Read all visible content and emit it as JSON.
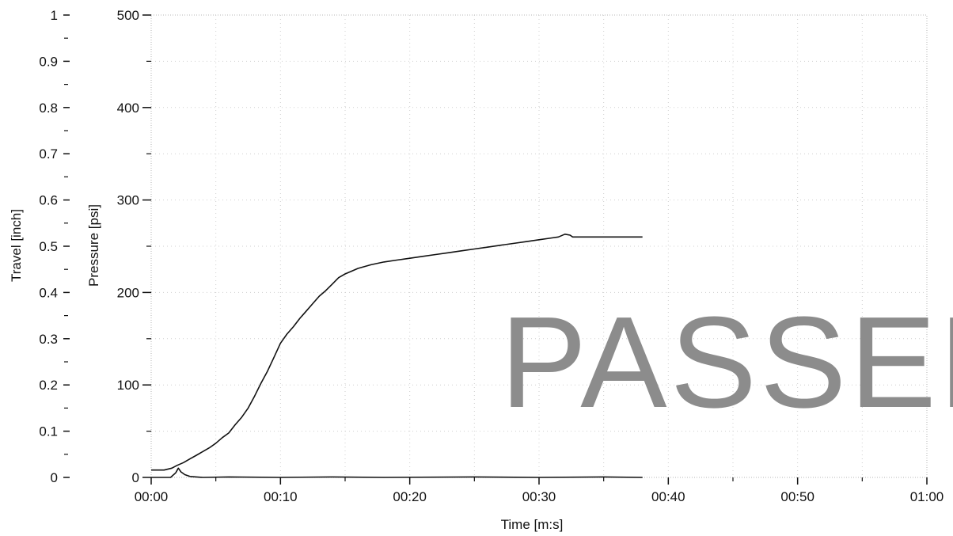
{
  "chart_data": {
    "type": "line",
    "xlabel": "Time [m:s]",
    "ylabel_left": "Travel [inch]",
    "ylabel_right": "Pressure [psi]",
    "x_range_seconds": [
      0,
      60
    ],
    "x_ticks": [
      "00:00",
      "00:10",
      "00:20",
      "00:30",
      "00:40",
      "00:50",
      "01:00"
    ],
    "travel_range": [
      0,
      1
    ],
    "travel_ticks": [
      "0",
      "0.1",
      "0.2",
      "0.3",
      "0.4",
      "0.5",
      "0.6",
      "0.7",
      "0.8",
      "0.9",
      "1"
    ],
    "pressure_range": [
      0,
      500
    ],
    "pressure_ticks": [
      "0",
      "100",
      "200",
      "300",
      "400",
      "500"
    ],
    "grid": "dotted",
    "stamp_text": "PASSED",
    "series": [
      {
        "axis": "pressure",
        "color": "#111111",
        "points": [
          [
            0.0,
            8
          ],
          [
            1.0,
            8
          ],
          [
            1.6,
            10
          ],
          [
            2.0,
            13
          ],
          [
            2.5,
            16
          ],
          [
            3.0,
            20
          ],
          [
            3.5,
            24
          ],
          [
            4.0,
            28
          ],
          [
            4.5,
            32
          ],
          [
            5.0,
            37
          ],
          [
            5.5,
            43
          ],
          [
            6.0,
            48
          ],
          [
            6.5,
            57
          ],
          [
            7.0,
            65
          ],
          [
            7.5,
            75
          ],
          [
            8.0,
            88
          ],
          [
            8.5,
            102
          ],
          [
            9.0,
            115
          ],
          [
            9.5,
            130
          ],
          [
            10.0,
            145
          ],
          [
            10.5,
            155
          ],
          [
            11.0,
            163
          ],
          [
            11.5,
            172
          ],
          [
            12.0,
            180
          ],
          [
            12.5,
            188
          ],
          [
            13.0,
            196
          ],
          [
            13.5,
            202
          ],
          [
            14.0,
            209
          ],
          [
            14.5,
            216
          ],
          [
            15.0,
            220
          ],
          [
            15.5,
            223
          ],
          [
            16.0,
            226
          ],
          [
            17.0,
            230
          ],
          [
            18.0,
            233
          ],
          [
            19.0,
            235
          ],
          [
            20.0,
            237
          ],
          [
            21.0,
            239
          ],
          [
            22.0,
            241
          ],
          [
            23.0,
            243
          ],
          [
            24.0,
            245
          ],
          [
            25.0,
            247
          ],
          [
            26.0,
            249
          ],
          [
            27.0,
            251
          ],
          [
            28.0,
            253
          ],
          [
            29.0,
            255
          ],
          [
            30.0,
            257
          ],
          [
            31.0,
            259
          ],
          [
            31.5,
            260
          ],
          [
            32.0,
            263
          ],
          [
            32.4,
            262
          ],
          [
            32.6,
            260
          ],
          [
            33.0,
            260
          ],
          [
            35.0,
            260
          ],
          [
            37.0,
            260
          ],
          [
            38.0,
            260
          ]
        ]
      },
      {
        "axis": "travel",
        "color": "#111111",
        "points": [
          [
            0.0,
            0.0
          ],
          [
            1.5,
            0.0
          ],
          [
            1.9,
            0.01
          ],
          [
            2.1,
            0.02
          ],
          [
            2.3,
            0.012
          ],
          [
            2.6,
            0.006
          ],
          [
            3.0,
            0.002
          ],
          [
            3.5,
            0.001
          ],
          [
            4.0,
            0.0
          ],
          [
            6.0,
            0.001
          ],
          [
            10.0,
            0.0
          ],
          [
            14.0,
            0.001
          ],
          [
            18.0,
            0.0
          ],
          [
            25.0,
            0.001
          ],
          [
            30.0,
            0.0
          ],
          [
            35.0,
            0.001
          ],
          [
            38.0,
            0.0
          ]
        ]
      }
    ]
  }
}
